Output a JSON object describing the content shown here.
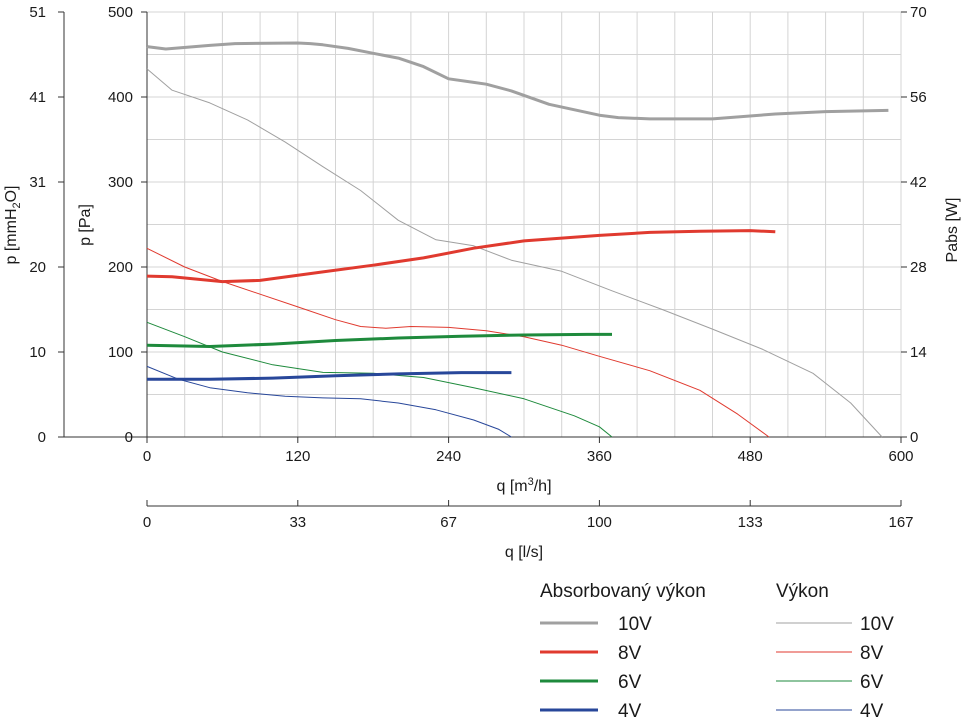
{
  "chart_data": {
    "type": "line",
    "x_axis": {
      "label": "q [m3/h]",
      "range": [
        0,
        600
      ],
      "ticks": [
        "0",
        "120",
        "240",
        "360",
        "480",
        "600"
      ]
    },
    "x2_axis": {
      "label": "q [l/s]",
      "range": [
        0,
        167
      ],
      "ticks": [
        "0",
        "33",
        "67",
        "100",
        "133",
        "167"
      ]
    },
    "y_left_pa": {
      "label": "p [Pa]",
      "range": [
        0,
        500
      ],
      "ticks": [
        "0",
        "100",
        "200",
        "300",
        "400",
        "500"
      ]
    },
    "y_left_mm": {
      "label": "p [mmH2O]",
      "ticks": [
        "0",
        "10",
        "20",
        "31",
        "41",
        "51"
      ]
    },
    "y_right": {
      "label": "Pabs [W]",
      "range": [
        0,
        70
      ],
      "ticks": [
        "0",
        "14",
        "28",
        "42",
        "56",
        "70"
      ]
    },
    "grid": true,
    "legend": {
      "placement": "bottom-right",
      "power_title": "Absorbovaný výkon",
      "perf_title": "Výkon",
      "labels": [
        "10V",
        "8V",
        "6V",
        "4V"
      ]
    },
    "colors": {
      "10V": "#a0a0a0",
      "8V": "#e03a2f",
      "6V": "#1e8a3c",
      "4V": "#28479a"
    },
    "performance_series": [
      {
        "name": "10V",
        "x": [
          0,
          20,
          50,
          80,
          110,
          140,
          170,
          200,
          230,
          260,
          290,
          330,
          370,
          410,
          450,
          490,
          530,
          560,
          585
        ],
        "y": [
          433,
          408,
          393,
          373,
          347,
          318,
          290,
          255,
          232,
          225,
          208,
          195,
          172,
          150,
          127,
          103,
          75,
          40,
          0
        ]
      },
      {
        "name": "8V",
        "x": [
          0,
          30,
          60,
          90,
          120,
          150,
          170,
          190,
          210,
          240,
          270,
          300,
          330,
          360,
          400,
          440,
          470,
          495
        ],
        "y": [
          222,
          200,
          183,
          168,
          153,
          138,
          130,
          128,
          130,
          129,
          125,
          118,
          108,
          95,
          78,
          55,
          27,
          0
        ]
      },
      {
        "name": "6V",
        "x": [
          0,
          30,
          60,
          100,
          140,
          180,
          220,
          260,
          300,
          340,
          360,
          370
        ],
        "y": [
          135,
          118,
          100,
          85,
          76,
          75,
          70,
          58,
          45,
          25,
          12,
          0
        ]
      },
      {
        "name": "4V",
        "x": [
          0,
          25,
          50,
          80,
          110,
          140,
          170,
          200,
          230,
          260,
          280,
          290
        ],
        "y": [
          83,
          68,
          58,
          52,
          48,
          46,
          45,
          40,
          32,
          20,
          9,
          0
        ]
      }
    ],
    "absorbed_power_series": [
      {
        "name": "10V",
        "x": [
          0,
          15,
          50,
          70,
          120,
          130,
          140,
          160,
          180,
          200,
          220,
          240,
          260,
          270,
          290,
          320,
          360,
          375,
          400,
          450,
          500,
          540,
          590
        ],
        "y": [
          64.3,
          63.9,
          64.5,
          64.8,
          64.9,
          64.8,
          64.6,
          64.0,
          63.2,
          62.4,
          61.0,
          59.0,
          58.4,
          58.1,
          57.0,
          54.8,
          53.0,
          52.6,
          52.4,
          52.4,
          53.2,
          53.6,
          53.8
        ]
      },
      {
        "name": "8V",
        "x": [
          0,
          20,
          60,
          90,
          140,
          180,
          220,
          260,
          300,
          360,
          400,
          440,
          480,
          500
        ],
        "y": [
          26.5,
          26.4,
          25.6,
          25.8,
          27.2,
          28.3,
          29.5,
          31.1,
          32.3,
          33.2,
          33.7,
          33.9,
          34.0,
          33.8
        ]
      },
      {
        "name": "6V",
        "x": [
          0,
          50,
          100,
          150,
          200,
          250,
          300,
          350,
          370
        ],
        "y": [
          15.1,
          14.9,
          15.3,
          15.9,
          16.3,
          16.6,
          16.8,
          16.9,
          16.9
        ]
      },
      {
        "name": "4V",
        "x": [
          0,
          50,
          100,
          150,
          200,
          250,
          290
        ],
        "y": [
          9.5,
          9.5,
          9.7,
          10.1,
          10.4,
          10.6,
          10.6
        ]
      }
    ]
  }
}
